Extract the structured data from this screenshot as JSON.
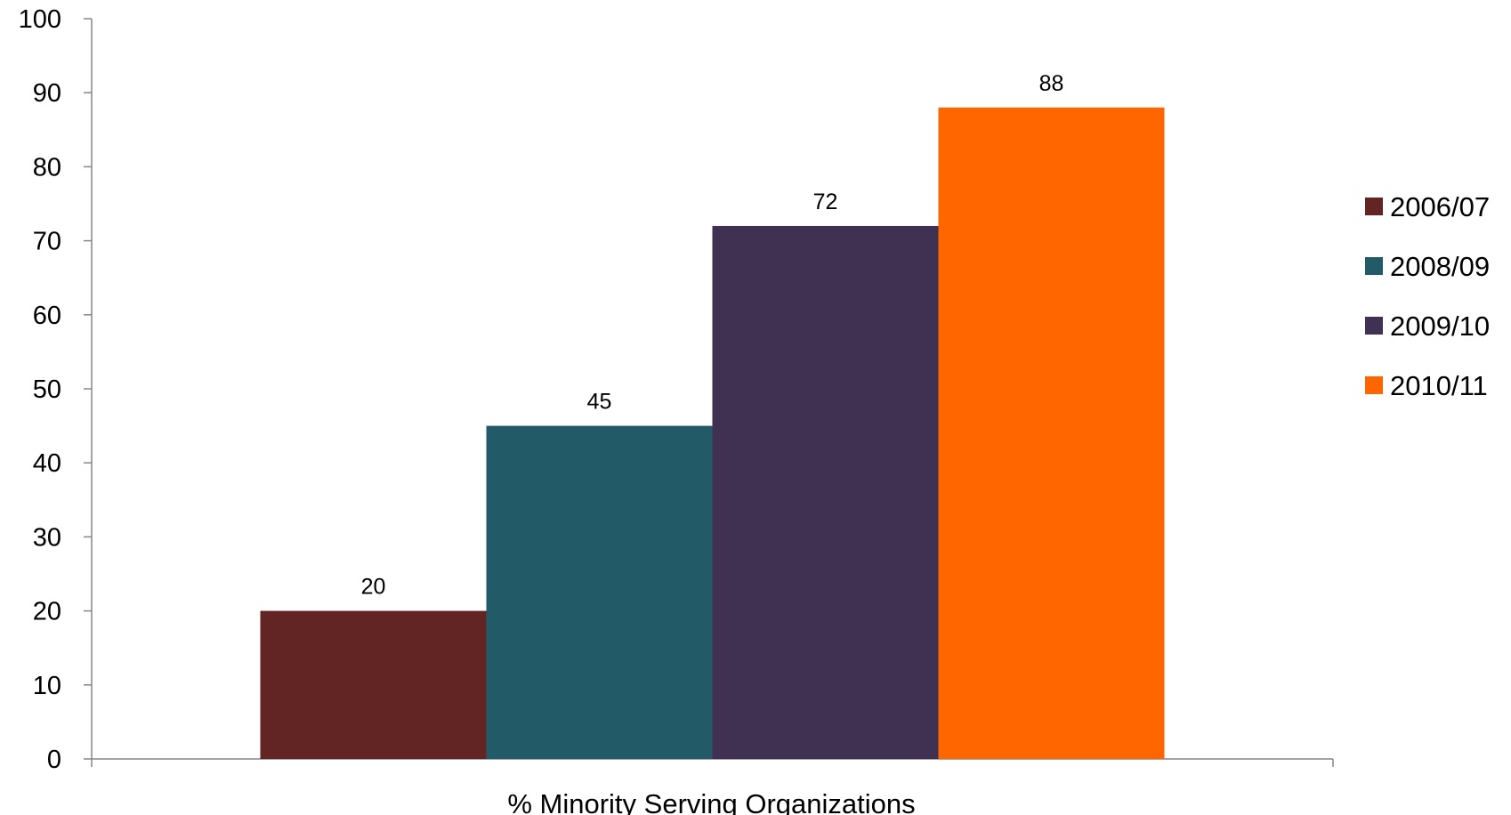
{
  "chart_data": {
    "type": "bar",
    "categories": [
      "% Minority Serving Organizations"
    ],
    "series": [
      {
        "name": "2006/07",
        "values": [
          20
        ],
        "color": "#632523"
      },
      {
        "name": "2008/09",
        "values": [
          45
        ],
        "color": "#235A68"
      },
      {
        "name": "2009/10",
        "values": [
          72
        ],
        "color": "#403152"
      },
      {
        "name": "2010/11",
        "values": [
          88
        ],
        "color": "#FF6600"
      }
    ],
    "title": "",
    "xlabel": "",
    "ylabel": "",
    "ylim": [
      0,
      100
    ],
    "yticks": [
      0,
      10,
      20,
      30,
      40,
      50,
      60,
      70,
      80,
      90,
      100
    ],
    "data_labels": true,
    "grid": false,
    "legend_position": "right"
  }
}
